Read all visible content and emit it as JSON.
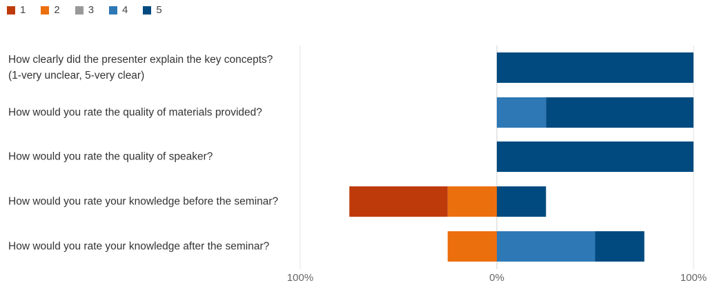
{
  "chart_data": {
    "type": "bar",
    "orientation": "horizontal",
    "stacked": "diverging",
    "legend": {
      "placement": "top-left",
      "entries": [
        "1",
        "2",
        "3",
        "4",
        "5"
      ]
    },
    "colors": {
      "1": "#bf3a0a",
      "2": "#ec6f0e",
      "3": "#999999",
      "4": "#2e78b5",
      "5": "#004a80"
    },
    "categories": [
      "How clearly did the presenter explain the key concepts? (1-very unclear, 5-very clear)",
      "How would you rate the quality of materials provided?",
      "How would you rate the quality of speaker?",
      "How would you rate your knowledge before the seminar?",
      "How would you rate your knowledge after the seminar?"
    ],
    "series": [
      {
        "name": "1",
        "values": [
          0,
          0,
          0,
          50,
          0
        ]
      },
      {
        "name": "2",
        "values": [
          0,
          0,
          0,
          25,
          25
        ]
      },
      {
        "name": "3",
        "values": [
          0,
          0,
          0,
          0,
          0
        ]
      },
      {
        "name": "4",
        "values": [
          0,
          25,
          0,
          0,
          50
        ]
      },
      {
        "name": "5",
        "values": [
          100,
          75,
          100,
          25,
          25
        ]
      }
    ],
    "negative_series": [
      "1",
      "2"
    ],
    "positive_series": [
      "4",
      "5"
    ],
    "xlim": [
      -100,
      100
    ],
    "tick_labels": [
      "100%",
      "0%",
      "100%"
    ],
    "grid": true
  }
}
